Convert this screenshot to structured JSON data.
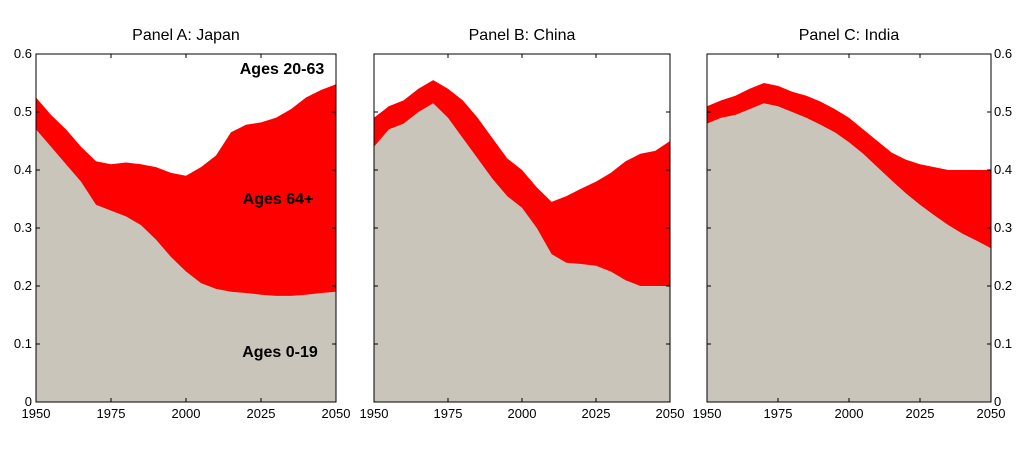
{
  "colors": {
    "young": "#cac5ba",
    "old": "#ff0000",
    "frame": "#000000"
  },
  "chart_data": [
    {
      "type": "area",
      "title": "Panel A: Japan",
      "x": [
        1950,
        1955,
        1960,
        1965,
        1970,
        1975,
        1980,
        1985,
        1990,
        1995,
        2000,
        2005,
        2010,
        2015,
        2020,
        2025,
        2030,
        2035,
        2040,
        2045,
        2050
      ],
      "series": [
        {
          "name": "Ages 0-19",
          "values": [
            0.47,
            0.44,
            0.41,
            0.38,
            0.34,
            0.33,
            0.32,
            0.305,
            0.28,
            0.25,
            0.225,
            0.205,
            0.195,
            0.19,
            0.188,
            0.185,
            0.183,
            0.183,
            0.185,
            0.188,
            0.19
          ]
        },
        {
          "name": "Ages 64+",
          "values": [
            0.525,
            0.495,
            0.47,
            0.44,
            0.415,
            0.41,
            0.413,
            0.41,
            0.405,
            0.395,
            0.39,
            0.405,
            0.425,
            0.465,
            0.478,
            0.482,
            0.49,
            0.505,
            0.525,
            0.538,
            0.548
          ]
        },
        {
          "name": "Ages 20-63",
          "values": [
            0.6,
            0.6,
            0.6,
            0.6,
            0.6,
            0.6,
            0.6,
            0.6,
            0.6,
            0.6,
            0.6,
            0.6,
            0.6,
            0.6,
            0.6,
            0.6,
            0.6,
            0.6,
            0.6,
            0.6,
            0.6
          ]
        }
      ],
      "xlim": [
        1950,
        2050
      ],
      "ylim": [
        0,
        0.6
      ],
      "xticks": [
        "1950",
        "1975",
        "2000",
        "2025",
        "2050"
      ],
      "yticks": [
        "0",
        "0.1",
        "0.2",
        "0.3",
        "0.4",
        "0.5",
        "0.6"
      ],
      "labels": [
        "Ages 20-63",
        "Ages 64+",
        "Ages 0-19"
      ],
      "yaxis_side": "left"
    },
    {
      "type": "area",
      "title": "Panel B: China",
      "x": [
        1950,
        1955,
        1960,
        1965,
        1970,
        1975,
        1980,
        1985,
        1990,
        1995,
        2000,
        2005,
        2010,
        2015,
        2020,
        2025,
        2030,
        2035,
        2040,
        2045,
        2050
      ],
      "series": [
        {
          "name": "Ages 0-19",
          "values": [
            0.44,
            0.47,
            0.48,
            0.5,
            0.515,
            0.49,
            0.455,
            0.42,
            0.385,
            0.355,
            0.335,
            0.3,
            0.255,
            0.24,
            0.238,
            0.235,
            0.225,
            0.21,
            0.2,
            0.2,
            0.2
          ]
        },
        {
          "name": "Ages 64+",
          "values": [
            0.49,
            0.51,
            0.52,
            0.54,
            0.555,
            0.54,
            0.52,
            0.49,
            0.455,
            0.42,
            0.4,
            0.37,
            0.345,
            0.355,
            0.368,
            0.38,
            0.395,
            0.415,
            0.428,
            0.433,
            0.45
          ]
        },
        {
          "name": "Ages 20-63",
          "values": [
            0.6,
            0.6,
            0.6,
            0.6,
            0.6,
            0.6,
            0.6,
            0.6,
            0.6,
            0.6,
            0.6,
            0.6,
            0.6,
            0.6,
            0.6,
            0.6,
            0.6,
            0.6,
            0.6,
            0.6,
            0.6
          ]
        }
      ],
      "xlim": [
        1950,
        2050
      ],
      "ylim": [
        0,
        0.6
      ],
      "xticks": [
        "1950",
        "1975",
        "2000",
        "2025",
        "2050"
      ],
      "yticks": [],
      "yaxis_side": "none"
    },
    {
      "type": "area",
      "title": "Panel C: India",
      "x": [
        1950,
        1955,
        1960,
        1965,
        1970,
        1975,
        1980,
        1985,
        1990,
        1995,
        2000,
        2005,
        2010,
        2015,
        2020,
        2025,
        2030,
        2035,
        2040,
        2045,
        2050
      ],
      "series": [
        {
          "name": "Ages 0-19",
          "values": [
            0.48,
            0.49,
            0.495,
            0.505,
            0.515,
            0.51,
            0.5,
            0.49,
            0.478,
            0.465,
            0.448,
            0.428,
            0.405,
            0.382,
            0.36,
            0.34,
            0.322,
            0.305,
            0.29,
            0.278,
            0.265
          ]
        },
        {
          "name": "Ages 64+",
          "values": [
            0.51,
            0.52,
            0.528,
            0.54,
            0.55,
            0.545,
            0.535,
            0.528,
            0.518,
            0.505,
            0.49,
            0.47,
            0.45,
            0.43,
            0.418,
            0.41,
            0.405,
            0.4,
            0.4,
            0.4,
            0.4
          ]
        },
        {
          "name": "Ages 20-63",
          "values": [
            0.6,
            0.6,
            0.6,
            0.6,
            0.6,
            0.6,
            0.6,
            0.6,
            0.6,
            0.6,
            0.6,
            0.6,
            0.6,
            0.6,
            0.6,
            0.6,
            0.6,
            0.6,
            0.6,
            0.6,
            0.6
          ]
        }
      ],
      "xlim": [
        1950,
        2050
      ],
      "ylim": [
        0,
        0.6
      ],
      "xticks": [
        "1950",
        "1975",
        "2000",
        "2025",
        "2050"
      ],
      "yticks": [
        "0",
        "0.1",
        "0.2",
        "0.3",
        "0.4",
        "0.5",
        "0.6"
      ],
      "yaxis_side": "right"
    }
  ]
}
